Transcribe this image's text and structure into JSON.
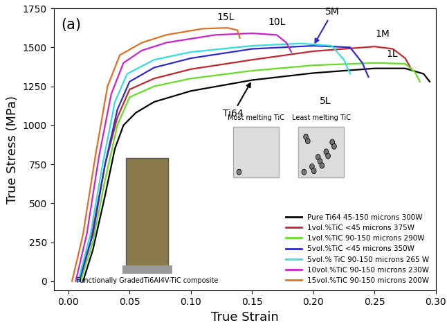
{
  "chart_data": {
    "type": "line",
    "panel_label": "(a)",
    "xlabel": "True Strain",
    "ylabel": "True Stress (MPa)",
    "xlim": [
      -0.012,
      0.3
    ],
    "ylim": [
      -60,
      1750
    ],
    "xticks": [
      {
        "value": 0.0,
        "label": "0.00"
      },
      {
        "value": 0.05,
        "label": "0.05"
      },
      {
        "value": 0.1,
        "label": "0.10"
      },
      {
        "value": 0.15,
        "label": "0.15"
      },
      {
        "value": 0.2,
        "label": "0.20"
      },
      {
        "value": 0.25,
        "label": "0.25"
      },
      {
        "value": 0.3,
        "label": "0.30"
      }
    ],
    "yticks": [
      0,
      250,
      500,
      750,
      1000,
      1250,
      1500,
      1750
    ],
    "legend": "lower right",
    "series": [
      {
        "name": "Pure Ti64 45-150 microns 300W",
        "label": "Ti64",
        "color": "#000000",
        "x": [
          0.012,
          0.02,
          0.03,
          0.038,
          0.045,
          0.055,
          0.07,
          0.1,
          0.15,
          0.2,
          0.25,
          0.275,
          0.29,
          0.295
        ],
        "values": [
          0,
          200,
          550,
          850,
          1000,
          1080,
          1150,
          1220,
          1290,
          1335,
          1365,
          1365,
          1330,
          1280
        ]
      },
      {
        "name": "1vol.%TiC <45 microns 375W",
        "label": "1M",
        "color": "#c0262b",
        "x": [
          0.008,
          0.018,
          0.03,
          0.04,
          0.05,
          0.07,
          0.1,
          0.15,
          0.2,
          0.25,
          0.265,
          0.275,
          0.28
        ],
        "values": [
          0,
          250,
          750,
          1050,
          1230,
          1300,
          1360,
          1420,
          1475,
          1505,
          1490,
          1430,
          1360
        ]
      },
      {
        "name": "1vol.%TiC 90-150 microns 290W",
        "label": "1L",
        "color": "#66dd22",
        "x": [
          0.01,
          0.02,
          0.03,
          0.04,
          0.05,
          0.07,
          0.1,
          0.15,
          0.2,
          0.25,
          0.275,
          0.283,
          0.287
        ],
        "values": [
          0,
          250,
          650,
          1000,
          1180,
          1250,
          1300,
          1350,
          1385,
          1400,
          1395,
          1340,
          1280
        ]
      },
      {
        "name": "5vol.%TiC <45 microns 350W",
        "label": "5M",
        "color": "#2a2ad0",
        "x": [
          0.009,
          0.02,
          0.03,
          0.04,
          0.05,
          0.07,
          0.1,
          0.15,
          0.2,
          0.23,
          0.24,
          0.245
        ],
        "values": [
          0,
          300,
          750,
          1100,
          1280,
          1370,
          1430,
          1490,
          1510,
          1500,
          1400,
          1310
        ]
      },
      {
        "name": "5vol.% TiC 90-150 microns 265 W",
        "label": "5L",
        "color": "#33dddd",
        "x": [
          0.008,
          0.018,
          0.028,
          0.038,
          0.048,
          0.07,
          0.1,
          0.15,
          0.19,
          0.215,
          0.225,
          0.23
        ],
        "values": [
          0,
          300,
          750,
          1150,
          1330,
          1420,
          1470,
          1510,
          1525,
          1510,
          1420,
          1330
        ]
      },
      {
        "name": "10vol.%TiC 90-150 microns 230W",
        "label": "10L",
        "color": "#cc22cc",
        "x": [
          0.006,
          0.015,
          0.025,
          0.035,
          0.045,
          0.06,
          0.08,
          0.12,
          0.15,
          0.17,
          0.178,
          0.182
        ],
        "values": [
          0,
          300,
          800,
          1200,
          1400,
          1480,
          1530,
          1580,
          1590,
          1580,
          1530,
          1470
        ]
      },
      {
        "name": "15vol.%TiC 90-150 microns 200W",
        "label": "15L",
        "color": "#e07020",
        "x": [
          0.003,
          0.012,
          0.022,
          0.032,
          0.042,
          0.06,
          0.08,
          0.11,
          0.13,
          0.138,
          0.14
        ],
        "values": [
          0,
          300,
          800,
          1250,
          1450,
          1530,
          1580,
          1620,
          1625,
          1610,
          1560
        ]
      }
    ],
    "insets": {
      "photo_caption": "Functionally GradedTi6Al4V-TiC composite",
      "micrograph_left": "Most melting TiC",
      "micrograph_right": "Least melting TiC"
    }
  }
}
